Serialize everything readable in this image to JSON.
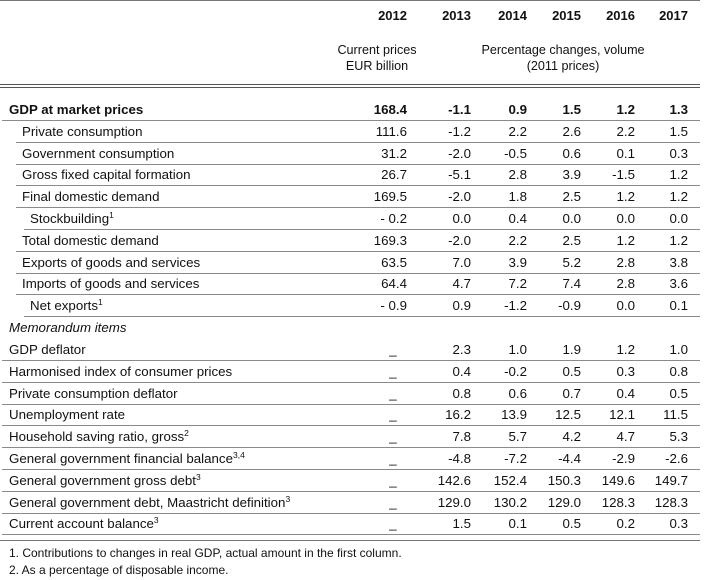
{
  "header": {
    "years": [
      "2012",
      "2013",
      "2014",
      "2015",
      "2016",
      "2017"
    ],
    "sub_left_line1": "Current prices",
    "sub_left_line2": "EUR billion",
    "sub_right_line1": "Percentage changes, volume",
    "sub_right_line2": "(2011 prices)"
  },
  "rows": [
    {
      "label": "GDP at market prices",
      "sup": "",
      "values": [
        "168.4",
        "-1.1",
        "0.9",
        "1.5",
        "1.2",
        "1.3"
      ]
    },
    {
      "label": "Private consumption",
      "sup": "",
      "values": [
        "111.6",
        "-1.2",
        "2.2",
        "2.6",
        "2.2",
        "1.5"
      ]
    },
    {
      "label": "Government consumption",
      "sup": "",
      "values": [
        "31.2",
        "-2.0",
        "-0.5",
        "0.6",
        "0.1",
        "0.3"
      ]
    },
    {
      "label": "Gross fixed capital formation",
      "sup": "",
      "values": [
        "26.7",
        "-5.1",
        "2.8",
        "3.9",
        "-1.5",
        "1.2"
      ]
    },
    {
      "label": "Final domestic demand",
      "sup": "",
      "values": [
        "169.5",
        "-2.0",
        "1.8",
        "2.5",
        "1.2",
        "1.2"
      ]
    },
    {
      "label": "Stockbuilding",
      "sup": "1",
      "values": [
        "- 0.2",
        "0.0",
        "0.4",
        "0.0",
        "0.0",
        "0.0"
      ]
    },
    {
      "label": "Total domestic demand",
      "sup": "",
      "values": [
        "169.3",
        "-2.0",
        "2.2",
        "2.5",
        "1.2",
        "1.2"
      ]
    },
    {
      "label": "Exports of goods and services",
      "sup": "",
      "values": [
        "63.5",
        "7.0",
        "3.9",
        "5.2",
        "2.8",
        "3.8"
      ]
    },
    {
      "label": "Imports of goods and services",
      "sup": "",
      "values": [
        "64.4",
        "4.7",
        "7.2",
        "7.4",
        "2.8",
        "3.6"
      ]
    },
    {
      "label": "Net exports",
      "sup": "1",
      "values": [
        "- 0.9",
        "0.9",
        "-1.2",
        "-0.9",
        "0.0",
        "0.1"
      ]
    }
  ],
  "memo_title": "Memorandum items",
  "memo_rows": [
    {
      "label": "GDP deflator",
      "sup": "",
      "values": [
        "_",
        "2.3",
        "1.0",
        "1.9",
        "1.2",
        "1.0"
      ]
    },
    {
      "label": "Harmonised index of consumer prices",
      "sup": "",
      "values": [
        "_",
        "0.4",
        "-0.2",
        "0.5",
        "0.3",
        "0.8"
      ]
    },
    {
      "label": "Private consumption deflator",
      "sup": "",
      "values": [
        "_",
        "0.8",
        "0.6",
        "0.7",
        "0.4",
        "0.5"
      ]
    },
    {
      "label": "Unemployment rate",
      "sup": "",
      "values": [
        "_",
        "16.2",
        "13.9",
        "12.5",
        "12.1",
        "11.5"
      ]
    },
    {
      "label": "Household saving ratio, gross",
      "sup": "2",
      "values": [
        "_",
        "7.8",
        "5.7",
        "4.2",
        "4.7",
        "5.3"
      ]
    },
    {
      "label": "General government financial balance",
      "sup": "3,4",
      "values": [
        "_",
        "-4.8",
        "-7.2",
        "-4.4",
        "-2.9",
        "-2.6"
      ]
    },
    {
      "label": "General government gross debt",
      "sup": "3",
      "values": [
        "_",
        "142.6",
        "152.4",
        "150.3",
        "149.6",
        "149.7"
      ]
    },
    {
      "label": "General government debt, Maastricht definition",
      "sup": "3",
      "values": [
        "_",
        "129.0",
        "130.2",
        "129.0",
        "128.3",
        "128.3"
      ]
    },
    {
      "label": "Current account balance",
      "sup": "3",
      "values": [
        "_",
        "1.5",
        "0.1",
        "0.5",
        "0.2",
        "0.3"
      ]
    }
  ],
  "footnotes": [
    "1.  Contributions to changes in real GDP, actual amount in the first column.",
    "2.  As a percentage of disposable income."
  ]
}
